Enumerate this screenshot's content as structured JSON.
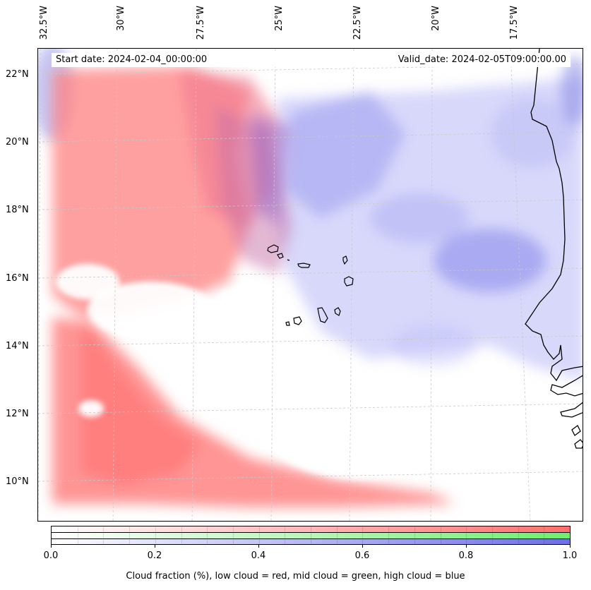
{
  "map": {
    "start_date": "Start date: 2024-02-04_00:00:00",
    "valid_date": "Valid_date: 2024-02-05T09:00:00.00",
    "lon_labels": [
      "32.5°W",
      "30°W",
      "27.5°W",
      "25°W",
      "22.5°W",
      "20°W",
      "17.5°W"
    ],
    "lat_labels": [
      "22°N",
      "20°N",
      "18°N",
      "16°N",
      "14°N",
      "12°N",
      "10°N"
    ],
    "colors": {
      "low_cloud": "#ff6e6e",
      "mid_cloud": "#6eee6e",
      "high_cloud": "#6e6ee6",
      "coastline": "#000000",
      "gridline": "#c8c8c8"
    }
  },
  "colorbar": {
    "ticks": [
      "0.0",
      "0.2",
      "0.4",
      "0.6",
      "0.8",
      "1.0"
    ],
    "caption": "Cloud fraction (%), low cloud = red, mid cloud = green, high cloud = blue"
  }
}
